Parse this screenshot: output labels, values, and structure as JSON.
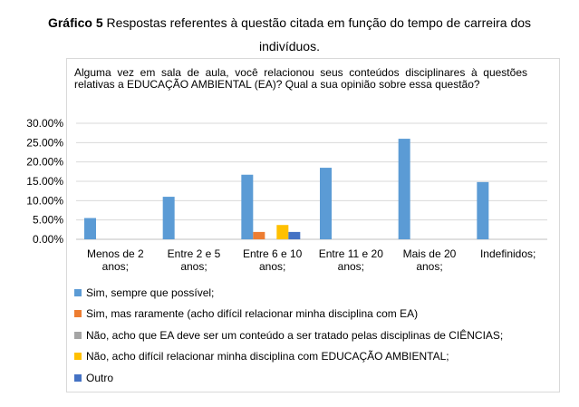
{
  "caption": {
    "label": "Gráfico 5",
    "text_line1": " Respostas referentes à questão citada em função do tempo de carreira dos",
    "text_line2": "indivíduos."
  },
  "question": "Alguma vez em sala de aula, você relacionou seus conteúdos disciplinares à questões relativas a EDUCAÇÃO AMBIENTAL (EA)? Qual a sua opinião sobre essa questão?",
  "chart_data": {
    "type": "bar",
    "title": "Alguma vez em sala de aula, você relacionou seus conteúdos disciplinares à questões relativas a EDUCAÇÃO AMBIENTAL (EA)? Qual a sua opinião sobre essa questão?",
    "categories": [
      [
        "Menos de 2",
        "anos;"
      ],
      [
        "Entre 2 e 5",
        "anos;"
      ],
      [
        "Entre 6 e 10",
        "anos;"
      ],
      [
        "Entre 11 e 20",
        "anos;"
      ],
      [
        "Mais de 20",
        "anos;"
      ],
      [
        "Indefinidos;"
      ]
    ],
    "series": [
      {
        "name": "Sim, sempre que possível;",
        "color": "#5b9bd5",
        "values": [
          0.055,
          0.11,
          0.167,
          0.185,
          0.26,
          0.148
        ]
      },
      {
        "name": "Sim, mas raramente (acho difícil relacionar minha disciplina com EA)",
        "color": "#ed7d31",
        "values": [
          0,
          0,
          0.019,
          0,
          0,
          0
        ]
      },
      {
        "name": "Não, acho que EA deve ser um conteúdo a ser tratado pelas disciplinas de CIÊNCIAS;",
        "color": "#a5a5a5",
        "values": [
          0,
          0,
          0,
          0,
          0,
          0
        ]
      },
      {
        "name": "Não, acho difícil relacionar minha disciplina com EDUCAÇÃO AMBIENTAL;",
        "color": "#ffc000",
        "values": [
          0,
          0,
          0.037,
          0,
          0,
          0
        ]
      },
      {
        "name": "Outro",
        "color": "#4472c4",
        "values": [
          0,
          0,
          0.019,
          0,
          0,
          0
        ]
      }
    ],
    "yticks": [
      "0.00%",
      "5.00%",
      "10.00%",
      "15.00%",
      "20.00%",
      "25.00%",
      "30.00%"
    ],
    "ylim": [
      0,
      0.3
    ],
    "grid": true,
    "legend_position": "bottom"
  }
}
